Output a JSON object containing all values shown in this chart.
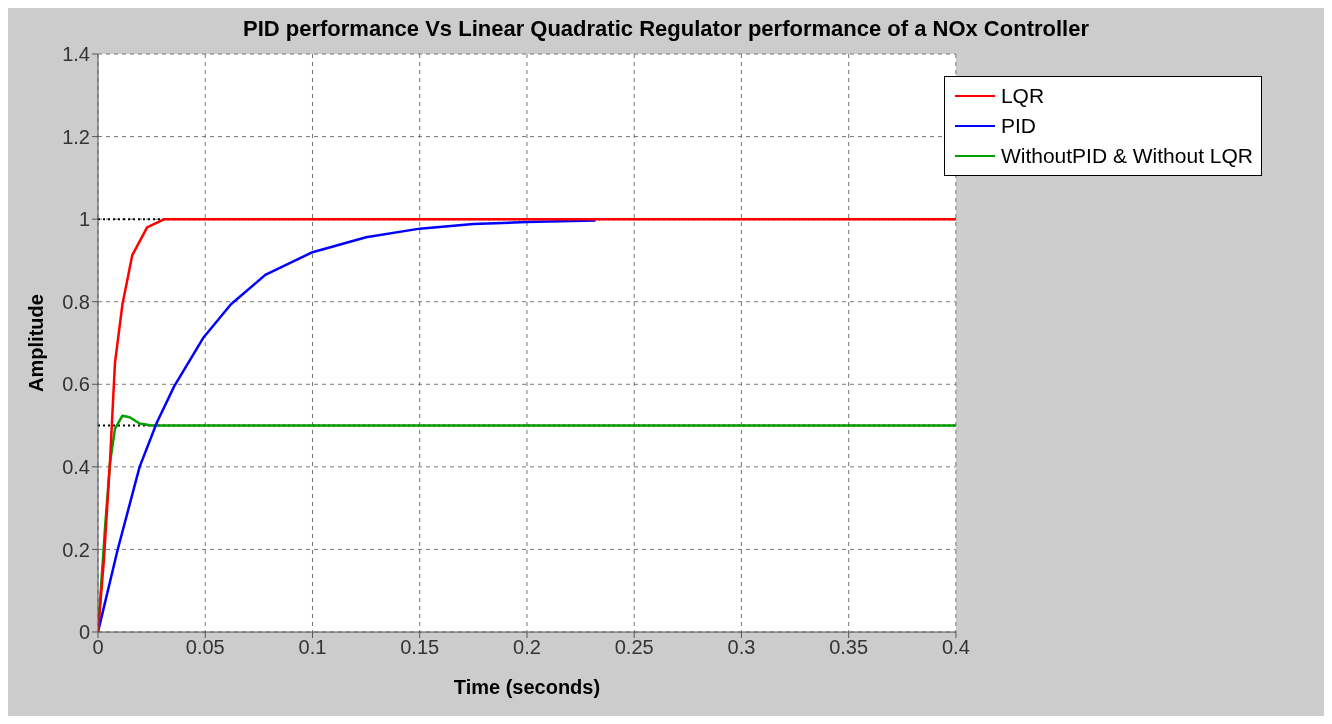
{
  "chart_data": {
    "type": "line",
    "title": "PID performance Vs Linear Quadratic Regulator performance of a NOx Controller",
    "xlabel": "Time (seconds)",
    "ylabel": "Amplitude",
    "series": [
      {
        "name": "WithoutPID & Without LQR",
        "color": "#00a000",
        "x": [
          0,
          0.0033,
          0.0056,
          0.0079,
          0.0114,
          0.0148,
          0.0194,
          0.025,
          0.05,
          0.1,
          0.2,
          0.3,
          0.4
        ],
        "values": [
          0,
          0.254,
          0.41,
          0.492,
          0.524,
          0.52,
          0.505,
          0.5,
          0.5,
          0.5,
          0.5,
          0.5,
          0.5
        ]
      },
      {
        "name": "PID",
        "color": "#0000ff",
        "x": [
          0,
          0.0091,
          0.0194,
          0.0275,
          0.0355,
          0.0493,
          0.062,
          0.078,
          0.1,
          0.125,
          0.15,
          0.175,
          0.2,
          0.232
        ],
        "values": [
          0,
          0.198,
          0.4,
          0.508,
          0.595,
          0.714,
          0.794,
          0.865,
          0.92,
          0.956,
          0.977,
          0.988,
          0.993,
          0.997
        ]
      },
      {
        "name": "LQR",
        "color": "#ff0000",
        "x": [
          0,
          0.00276,
          0.0056,
          0.0079,
          0.0114,
          0.016,
          0.0229,
          0.031,
          0.05,
          0.1,
          0.2,
          0.3,
          0.4
        ],
        "values": [
          0,
          0.175,
          0.413,
          0.651,
          0.794,
          0.913,
          0.98,
          1,
          1,
          1,
          1,
          1,
          1
        ]
      }
    ],
    "ref_lines": [
      {
        "axis": "y",
        "value": 1,
        "color": "#000000",
        "line_style": "dotted"
      },
      {
        "axis": "y",
        "value": 0.5,
        "color": "#000000",
        "line_style": "dotted"
      }
    ],
    "xlim": [
      0,
      0.4
    ],
    "xticks": [
      0,
      0.05,
      0.1,
      0.15,
      0.2,
      0.25,
      0.3,
      0.35,
      0.4
    ],
    "ylim": [
      0,
      1.4
    ],
    "yticks": [
      0,
      0.2,
      0.4,
      0.6,
      0.8,
      1,
      1.2,
      1.4
    ],
    "grid": true,
    "legend": "top right",
    "marker": "none",
    "line_style": "solid"
  }
}
